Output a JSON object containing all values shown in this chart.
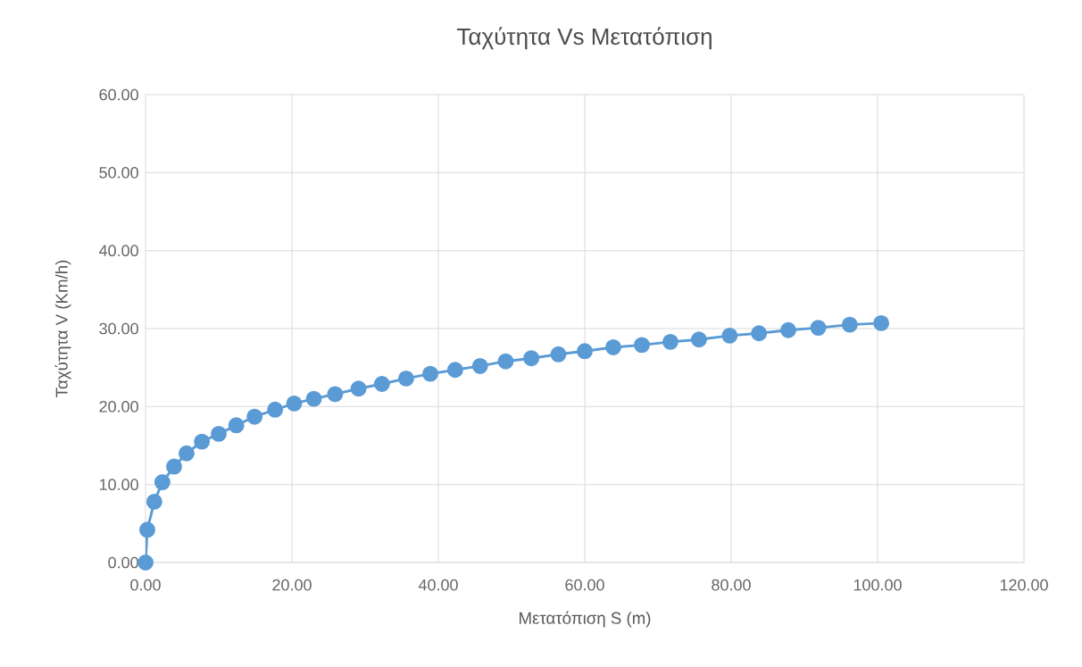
{
  "chart_data": {
    "type": "line",
    "title": "Ταχύτητα Vs Μετατόπιση",
    "xlabel": "Μετατόπιση S (m)",
    "ylabel": "Ταχύτητα V (Km/h)",
    "x": [
      0,
      0.24,
      1.2,
      2.3,
      3.9,
      5.6,
      7.7,
      10.0,
      12.4,
      14.9,
      17.7,
      20.3,
      23.0,
      25.9,
      29.1,
      32.3,
      35.6,
      38.9,
      42.3,
      45.7,
      49.2,
      52.7,
      56.4,
      60.0,
      63.9,
      67.8,
      71.7,
      75.6,
      79.8,
      83.8,
      87.8,
      91.9,
      96.2,
      100.5
    ],
    "series": [
      {
        "color": "#5b9bd5",
        "values": [
          0,
          4.2,
          7.8,
          10.3,
          12.3,
          14.0,
          15.5,
          16.5,
          17.6,
          18.7,
          19.6,
          20.4,
          21.0,
          21.6,
          22.3,
          22.9,
          23.6,
          24.2,
          24.7,
          25.2,
          25.8,
          26.2,
          26.7,
          27.1,
          27.6,
          27.9,
          28.3,
          28.6,
          29.1,
          29.4,
          29.8,
          30.1,
          30.5,
          30.7
        ]
      }
    ],
    "xlim": [
      0,
      120
    ],
    "ylim": [
      0,
      60
    ],
    "xticks": [
      {
        "value": 0,
        "label": "0.00"
      },
      {
        "value": 20,
        "label": "20.00"
      },
      {
        "value": 40,
        "label": "40.00"
      },
      {
        "value": 60,
        "label": "60.00"
      },
      {
        "value": 80,
        "label": "80.00"
      },
      {
        "value": 100,
        "label": "100.00"
      },
      {
        "value": 120,
        "label": "120.00"
      }
    ],
    "yticks": [
      {
        "value": 0,
        "label": "0.00"
      },
      {
        "value": 10,
        "label": "10.00"
      },
      {
        "value": 20,
        "label": "20.00"
      },
      {
        "value": 30,
        "label": "30.00"
      },
      {
        "value": 40,
        "label": "40.00"
      },
      {
        "value": 50,
        "label": "50.00"
      },
      {
        "value": 60,
        "label": "60.00"
      }
    ],
    "grid": true,
    "marker": "circle",
    "line_style": "solid"
  }
}
